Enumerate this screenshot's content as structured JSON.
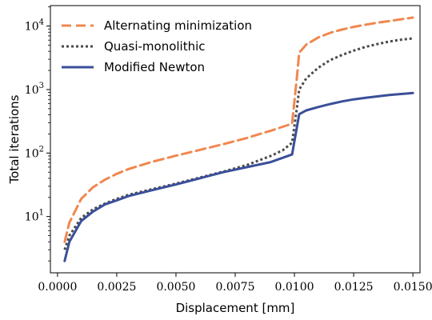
{
  "chart_data": {
    "type": "line",
    "xlabel": "Displacement [mm]",
    "ylabel": "Total iterations",
    "yscale": "log",
    "xlim": [
      -0.0003,
      0.0153
    ],
    "ylim": [
      1.3,
      21000
    ],
    "x_ticks": [
      0.0,
      0.0025,
      0.005,
      0.0075,
      0.01,
      0.0125,
      0.015
    ],
    "x_tick_labels": [
      "0.0000",
      "0.0025",
      "0.0050",
      "0.0075",
      "0.0100",
      "0.0125",
      "0.0150"
    ],
    "y_ticks": [
      10,
      100,
      1000,
      10000
    ],
    "y_tick_labels": [
      "10",
      "10",
      "10",
      "10"
    ],
    "y_tick_exponents": [
      "1",
      "2",
      "3",
      "4"
    ],
    "grid": false,
    "legend_position": "upper-left",
    "series": [
      {
        "name": "Alternating minimization",
        "color": "#f0874f",
        "style": "dashed",
        "x": [
          0.0003,
          0.0005,
          0.001,
          0.0015,
          0.002,
          0.0025,
          0.003,
          0.004,
          0.005,
          0.006,
          0.007,
          0.008,
          0.009,
          0.0099,
          0.0101,
          0.0102,
          0.0105,
          0.011,
          0.0115,
          0.012,
          0.0125,
          0.013,
          0.0135,
          0.014,
          0.0145,
          0.015
        ],
        "y": [
          4,
          8,
          19,
          29,
          38,
          47,
          56,
          73,
          91,
          112,
          138,
          173,
          225,
          290,
          1500,
          3800,
          5100,
          6600,
          7800,
          8800,
          9700,
          10500,
          11300,
          12000,
          12800,
          13600
        ]
      },
      {
        "name": "Quasi-monolithic",
        "color": "#4a4a4a",
        "style": "dotted",
        "x": [
          0.0003,
          0.0005,
          0.001,
          0.0015,
          0.002,
          0.0025,
          0.003,
          0.004,
          0.005,
          0.006,
          0.007,
          0.008,
          0.009,
          0.0095,
          0.0099,
          0.0101,
          0.0102,
          0.0105,
          0.011,
          0.0115,
          0.012,
          0.0125,
          0.013,
          0.0135,
          0.014,
          0.0145,
          0.015
        ],
        "y": [
          3,
          5,
          9.5,
          13,
          16,
          19,
          22,
          27,
          33,
          41,
          51,
          65,
          90,
          110,
          145,
          500,
          1000,
          1500,
          2200,
          2900,
          3500,
          4100,
          4700,
          5200,
          5700,
          6100,
          6400
        ]
      },
      {
        "name": "Modified Newton",
        "color": "#3a4f99",
        "style": "solid",
        "x": [
          0.0003,
          0.0005,
          0.001,
          0.0015,
          0.002,
          0.0025,
          0.003,
          0.004,
          0.005,
          0.006,
          0.007,
          0.008,
          0.009,
          0.0099,
          0.0102,
          0.0105,
          0.011,
          0.0115,
          0.012,
          0.0125,
          0.013,
          0.0135,
          0.014,
          0.0145,
          0.015
        ],
        "y": [
          2,
          4,
          8.5,
          12,
          15.5,
          18,
          21,
          26,
          32,
          40,
          50,
          60,
          72,
          95,
          410,
          470,
          530,
          590,
          650,
          700,
          740,
          780,
          820,
          850,
          880
        ]
      }
    ]
  }
}
